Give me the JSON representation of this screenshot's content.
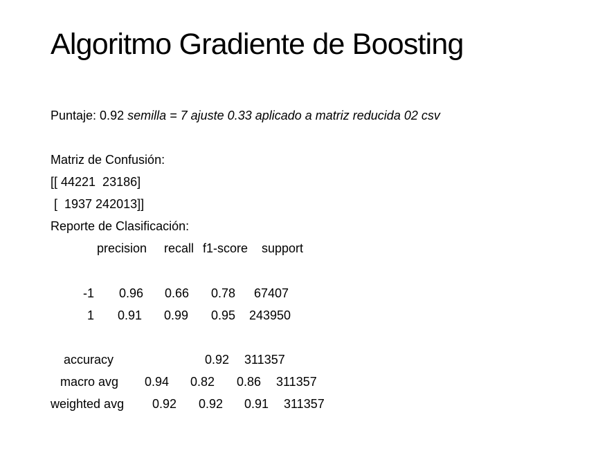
{
  "title": "Algoritmo Gradiente de Boosting",
  "score": {
    "label": "Puntaje: 0.92",
    "detail": "semilla = 7 ajuste 0.33 aplicado a matriz reducida 02 csv"
  },
  "confusion": {
    "heading": "Matriz de Confusión:",
    "row1": "[[ 44221  23186]",
    "row2": " [  1937 242013]]"
  },
  "report": {
    "heading": "Reporte de Clasificación:",
    "headers": [
      "precision",
      "recall",
      "f1-score",
      "support"
    ],
    "rows": [
      {
        "label": "-1",
        "precision": "0.96",
        "recall": "0.66",
        "f1": "0.78",
        "support": "67407"
      },
      {
        "label": "1",
        "precision": "0.91",
        "recall": "0.99",
        "f1": "0.95",
        "support": "243950"
      }
    ],
    "accuracy": {
      "label": "accuracy",
      "f1": "0.92",
      "support": "311357"
    },
    "macro": {
      "label": "macro avg",
      "precision": "0.94",
      "recall": "0.82",
      "f1": "0.86",
      "support": "311357"
    },
    "weighted": {
      "label": "weighted avg",
      "precision": "0.92",
      "recall": "0.92",
      "f1": "0.91",
      "support": "311357"
    }
  }
}
